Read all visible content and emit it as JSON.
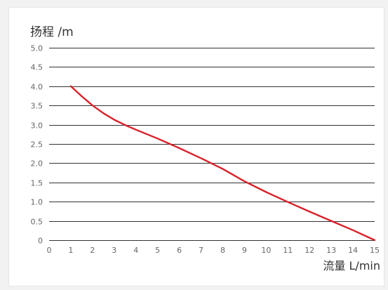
{
  "chart_data": {
    "type": "line",
    "ylabel": "扬程 /m",
    "xlabel": "流量 L/min",
    "xlim": [
      0,
      15
    ],
    "ylim": [
      0,
      5
    ],
    "x_ticks": [
      "0",
      "1",
      "2",
      "3",
      "4",
      "5",
      "6",
      "7",
      "8",
      "9",
      "10",
      "11",
      "12",
      "13",
      "14",
      "15"
    ],
    "y_ticks": [
      "0",
      "0.5",
      "1.0",
      "1.5",
      "2.0",
      "2.5",
      "3.0",
      "3.5",
      "4.0",
      "4.5",
      "5.0"
    ],
    "grid": "horizontal",
    "series": [
      {
        "color": "#d9212a",
        "x": [
          1,
          1.5,
          2,
          2.5,
          3,
          3.5,
          4,
          5,
          6,
          7,
          8,
          9,
          10,
          11,
          12,
          13,
          14,
          15
        ],
        "y": [
          4.0,
          3.74,
          3.5,
          3.3,
          3.13,
          2.99,
          2.87,
          2.64,
          2.39,
          2.13,
          1.85,
          1.53,
          1.25,
          0.99,
          0.74,
          0.5,
          0.26,
          0.0
        ]
      }
    ]
  }
}
